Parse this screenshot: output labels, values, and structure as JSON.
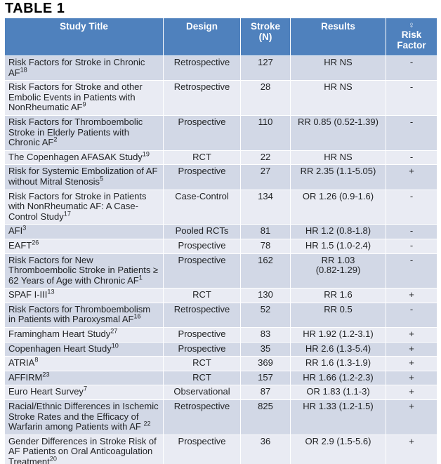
{
  "page": {
    "title": "TABLE 1"
  },
  "colors": {
    "header_bg": "#4F81BD",
    "header_text": "#FFFFFF",
    "band_dark": "#D2D8E6",
    "band_light": "#E9EBF3",
    "body_text": "#222426"
  },
  "table": {
    "columns": [
      {
        "label": "Study Title"
      },
      {
        "label": "Design"
      },
      {
        "label": "Stroke\n(N)"
      },
      {
        "label": "Results"
      },
      {
        "label": "Risk\nFactor",
        "icon": "♀",
        "icon_name": "female-icon"
      }
    ],
    "rows": [
      {
        "title": "Risk Factors for Stroke in Chronic AF",
        "sup": "18",
        "design": "Retrospective",
        "n": "127",
        "results": "HR NS",
        "risk": "-"
      },
      {
        "title": "Risk Factors for Stroke and other Embolic Events in Patients with NonRheumatic AF",
        "sup": "9",
        "design": "Retrospective",
        "n": "28",
        "results": "HR NS",
        "risk": "-"
      },
      {
        "title": "Risk Factors for Thromboembolic Stroke in Elderly Patients with Chronic AF",
        "sup": "2",
        "design": "Prospective",
        "n": "110",
        "results": "RR 0.85 (0.52-1.39)",
        "risk": "-"
      },
      {
        "title": "The Copenhagen AFASAK Study",
        "sup": "19",
        "design": "RCT",
        "n": "22",
        "results": "HR NS",
        "risk": "-"
      },
      {
        "title": "Risk for Systemic Embolization of AF without Mitral Stenosis",
        "sup": "5",
        "design": "Prospective",
        "n": "27",
        "results": "RR 2.35 (1.1-5.05)",
        "risk": "+"
      },
      {
        "title": "Risk Factors for Stroke in Patients with NonRheumatic AF: A Case-Control Study",
        "sup": "17",
        "design": "Case-Control",
        "n": "134",
        "results": "OR 1.26 (0.9-1.6)",
        "risk": "-"
      },
      {
        "title": "AFI",
        "sup": "3",
        "design": "Pooled RCTs",
        "n": "81",
        "results": "HR 1.2 (0.8-1.8)",
        "risk": "-"
      },
      {
        "title": "EAFT",
        "sup": "26",
        "design": "Prospective",
        "n": "78",
        "results": "HR 1.5 (1.0-2.4)",
        "risk": "-"
      },
      {
        "title": "Risk Factors for New Thromboembolic Stroke in Patients ≥ 62 Years of Age with Chronic AF",
        "sup": "1",
        "design": "Prospective",
        "n": "162",
        "results": "RR 1.03\n(0.82-1.29)",
        "risk": "-"
      },
      {
        "title": "SPAF I-III",
        "sup": "13",
        "design": "RCT",
        "n": "130",
        "results": "RR 1.6",
        "risk": "+"
      },
      {
        "title": "Risk Factors for Thromboembolism in Patients with Paroxysmal AF",
        "sup": "16",
        "design": "Retrospective",
        "n": "52",
        "results": "RR 0.5",
        "risk": "-"
      },
      {
        "title": "Framingham Heart Study",
        "sup": "27",
        "design": "Prospective",
        "n": "83",
        "results": "HR 1.92 (1.2-3.1)",
        "risk": "+"
      },
      {
        "title": "Copenhagen Heart Study",
        "sup": "10",
        "design": "Prospective",
        "n": "35",
        "results": "HR 2.6 (1.3-5.4)",
        "risk": "+"
      },
      {
        "title": "ATRIA",
        "sup": "8",
        "design": "RCT",
        "n": "369",
        "results": "RR 1.6 (1.3-1.9)",
        "risk": "+"
      },
      {
        "title": "AFFIRM",
        "sup": "23",
        "design": "RCT",
        "n": "157",
        "results": "HR 1.66 (1.2-2.3)",
        "risk": "+"
      },
      {
        "title": "Euro Heart Survey",
        "sup": "7",
        "design": "Observational",
        "n": "87",
        "results": "OR 1.83 (1.1-3)",
        "risk": "+"
      },
      {
        "title": "Racial/Ethnic Differences in Ischemic Stroke Rates and the Efficacy of Warfarin among Patients with AF ",
        "sup": "22",
        "design": "Retrospective",
        "n": "825",
        "results": "HR 1.33 (1.2-1.5)",
        "risk": "+"
      },
      {
        "title": "Gender Differences in Stroke Risk of AF Patients on Oral Anticoagulation Treatment",
        "sup": "20",
        "design": "Prospective",
        "n": "36",
        "results": "OR 2.9 (1.5-5.6)",
        "risk": "+"
      }
    ]
  }
}
